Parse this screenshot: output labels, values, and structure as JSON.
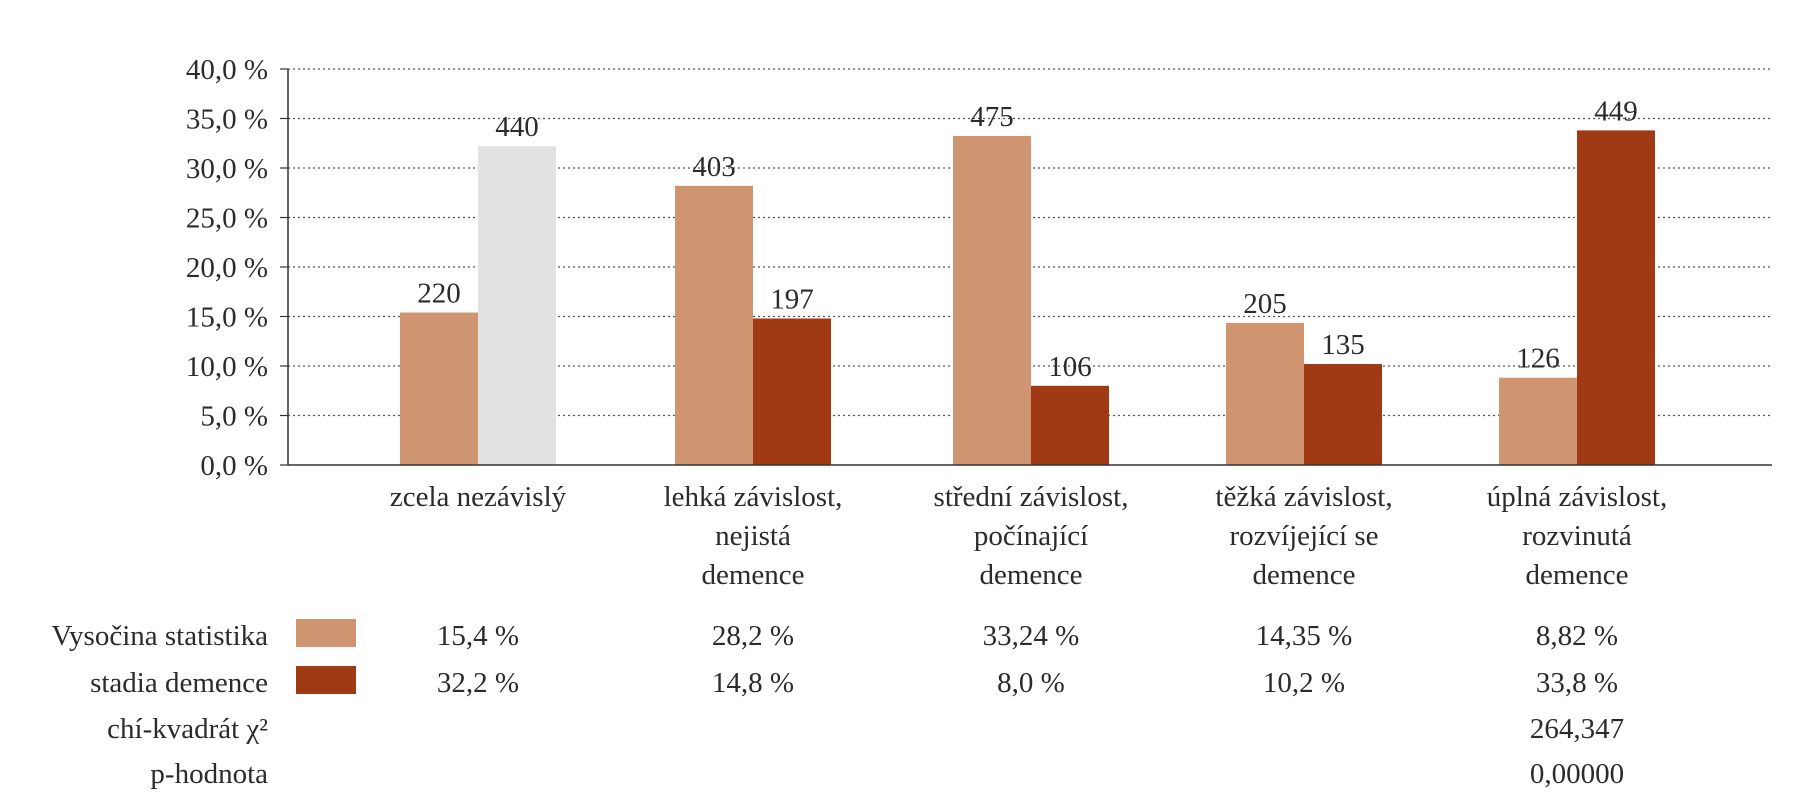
{
  "chart_data": {
    "type": "bar",
    "categories": [
      [
        "zcela nezávislý"
      ],
      [
        "lehká závislost,",
        "nejistá",
        "demence"
      ],
      [
        "střední závislost,",
        "počínající",
        "demence"
      ],
      [
        "těžká závislost,",
        "rozvíjející se",
        "demence"
      ],
      [
        "úplná závislost,",
        "rozvinutá",
        "demence"
      ]
    ],
    "ylim": [
      0,
      40
    ],
    "yticks": [
      "0,0 %",
      "5,0 %",
      "10,0 %",
      "15,0 %",
      "20,0 %",
      "25,0 %",
      "30,0 %",
      "35,0 %",
      "40,0 %"
    ],
    "grid": true,
    "series": [
      {
        "name": "Vysočina statistika",
        "color": "#cf9570",
        "values": [
          15.4,
          28.2,
          33.24,
          14.35,
          8.82
        ],
        "counts": [
          "220",
          "403",
          "475",
          "205",
          "126"
        ],
        "table_values": [
          "15,4 %",
          "28,2 %",
          "33,24 %",
          "14,35 %",
          "8,82 %"
        ]
      },
      {
        "name": "stadia demence",
        "color": "#a03a14",
        "values": [
          32.2,
          14.8,
          8.0,
          10.2,
          33.8
        ],
        "counts": [
          "440",
          "197",
          "106",
          "135",
          "449"
        ],
        "table_values": [
          "32,2 %",
          "14,8 %",
          "8,0 %",
          "10,2 %",
          "33,8 %"
        ],
        "point_colors": [
          "#e2e2e4",
          "#a03a14",
          "#a03a14",
          "#a03a14",
          "#a03a14"
        ]
      }
    ],
    "table_extra_rows": [
      {
        "label": "chí-kvadrát χ²",
        "values": [
          "",
          "",
          "",
          "",
          "264,347"
        ]
      },
      {
        "label": "p-hodnota",
        "values": [
          "",
          "",
          "",
          "",
          "0,00000"
        ]
      }
    ]
  }
}
